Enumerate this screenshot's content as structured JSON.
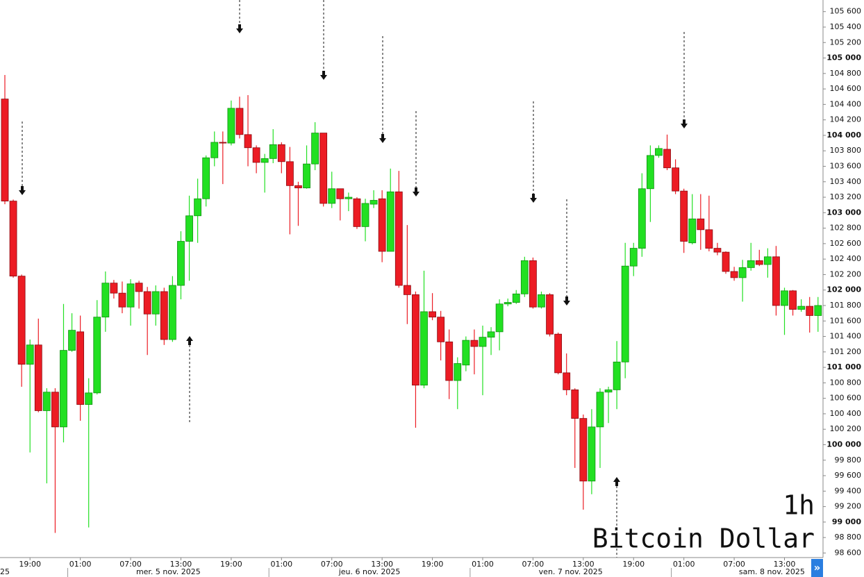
{
  "chart_data": {
    "type": "candlestick",
    "title": "Bitcoin Dollar",
    "interval": "1h",
    "up_color": "#22e022",
    "down_color": "#ec1c24",
    "categories": [
      null,
      null,
      null,
      "19:00",
      null,
      null,
      null,
      null,
      null,
      "01:00",
      null,
      null,
      null,
      null,
      null,
      "07:00",
      null,
      null,
      null,
      null,
      null,
      "13:00",
      null,
      null,
      null,
      null,
      null,
      "19:00",
      null,
      null,
      null,
      null,
      null,
      "01:00",
      null,
      null,
      null,
      null,
      null,
      "07:00",
      null,
      null,
      null,
      null,
      null,
      "13:00",
      null,
      null,
      null,
      null,
      null,
      "19:00",
      null,
      null,
      null,
      null,
      null,
      "01:00",
      null,
      null,
      null,
      null,
      null,
      "07:00",
      null,
      null,
      null,
      null,
      null,
      "13:00",
      null,
      null,
      null,
      null,
      null,
      "19:00",
      null,
      null,
      null,
      null,
      null,
      "01:00",
      null,
      null,
      null,
      null,
      null,
      "07:00",
      null,
      null,
      null,
      null,
      null,
      "13:00",
      null,
      null,
      null,
      null
    ],
    "date_labels": [
      "25",
      "mer. 5 nov. 2025",
      "jeu. 6 nov. 2025",
      "ven. 7 nov. 2025",
      "sam. 8 nov. 2025"
    ],
    "open": [
      104470,
      103150,
      102180,
      101040,
      101290,
      100440,
      100680,
      100230,
      101220,
      101460,
      100520,
      100670,
      101650,
      102090,
      101960,
      101780,
      102090,
      101980,
      101690,
      101980,
      101360,
      102060,
      102630,
      102960,
      103180,
      103710,
      103910,
      103900,
      104350,
      104010,
      103840,
      103650,
      103700,
      103880,
      103660,
      103350,
      103320,
      103630,
      104030,
      103120,
      103310,
      103180,
      103180,
      102820,
      103110,
      103180,
      102500,
      103270,
      102060,
      101940,
      100770,
      101720,
      101650,
      101330,
      100830,
      101030,
      101350,
      101270,
      101390,
      101460,
      101820,
      101840,
      101950,
      102380,
      101780,
      101940,
      101430,
      100930,
      100710,
      100340,
      99530,
      100230,
      100680,
      100710,
      101070,
      102310,
      102540,
      103310,
      103740,
      103820,
      103580,
      103280,
      102610,
      102920,
      102780,
      102540,
      102490,
      102240,
      102160,
      102290,
      102380,
      102330,
      102430,
      101800,
      101990,
      101750,
      101790,
      101670
    ],
    "high": [
      104780,
      103170,
      102200,
      101360,
      101630,
      100730,
      100730,
      101820,
      101700,
      101670,
      100860,
      101870,
      102240,
      102130,
      102110,
      102140,
      102120,
      102040,
      102060,
      102030,
      102180,
      102760,
      103220,
      103440,
      103740,
      104050,
      104050,
      104450,
      104500,
      104520,
      103870,
      103760,
      104080,
      103910,
      103850,
      103400,
      103870,
      104170,
      104030,
      103530,
      103310,
      103260,
      103200,
      103180,
      103290,
      103290,
      103570,
      103540,
      102840,
      101980,
      102250,
      101960,
      101730,
      101490,
      101130,
      101400,
      101490,
      101540,
      101520,
      101880,
      101890,
      102000,
      102430,
      102420,
      101980,
      101960,
      101450,
      101180,
      100730,
      100390,
      100460,
      100730,
      100750,
      101340,
      102610,
      102610,
      103510,
      103870,
      103870,
      104010,
      103690,
      103310,
      103240,
      103240,
      103220,
      102610,
      102500,
      102300,
      102390,
      102610,
      102520,
      102540,
      102570,
      102030,
      102000,
      101880,
      101910,
      101910
    ],
    "low": [
      103110,
      102160,
      100750,
      99900,
      100420,
      99500,
      98860,
      100030,
      101200,
      100310,
      98930,
      100650,
      101460,
      101890,
      101700,
      101540,
      101760,
      101160,
      101540,
      101290,
      101330,
      101880,
      102120,
      102610,
      103080,
      103600,
      103370,
      103870,
      103960,
      103600,
      103510,
      103260,
      103640,
      103510,
      102720,
      102830,
      103310,
      103550,
      103080,
      103060,
      102900,
      103020,
      102790,
      102630,
      103060,
      102360,
      102500,
      102030,
      101560,
      100220,
      100730,
      101610,
      101090,
      100590,
      100460,
      100950,
      100910,
      100640,
      101160,
      101220,
      101790,
      101820,
      101910,
      101760,
      101760,
      101400,
      100910,
      100640,
      99700,
      99160,
      99360,
      99700,
      100280,
      100460,
      100860,
      102180,
      102430,
      102880,
      103710,
      103550,
      103240,
      102480,
      102590,
      102520,
      102500,
      102450,
      102210,
      102120,
      101850,
      102250,
      102310,
      102160,
      101670,
      101420,
      101670,
      101720,
      101450,
      101460
    ],
    "close": [
      103150,
      102180,
      101040,
      101290,
      100440,
      100680,
      100230,
      101220,
      101480,
      100520,
      100670,
      101650,
      102090,
      101960,
      101780,
      102080,
      101980,
      101690,
      101980,
      101360,
      102060,
      102630,
      102960,
      103180,
      103710,
      103910,
      103900,
      104350,
      104010,
      103840,
      103650,
      103700,
      103880,
      103660,
      103350,
      103320,
      103630,
      104030,
      103120,
      103310,
      103180,
      103200,
      102820,
      103120,
      103160,
      102500,
      103270,
      102060,
      101940,
      100770,
      101720,
      101650,
      101330,
      100830,
      101050,
      101350,
      101270,
      101390,
      101460,
      101820,
      101840,
      101950,
      102380,
      101780,
      101940,
      101430,
      100930,
      100710,
      100340,
      99530,
      100230,
      100680,
      100710,
      101070,
      102310,
      102540,
      103310,
      103740,
      103830,
      103580,
      103280,
      102630,
      102920,
      102780,
      102540,
      102490,
      102240,
      102160,
      102290,
      102380,
      102330,
      102430,
      101800,
      101990,
      101750,
      101790,
      101670,
      101800
    ],
    "ylim": [
      98550,
      105750
    ],
    "yticks": [
      {
        "value": 98600,
        "label": "98 600"
      },
      {
        "value": 98800,
        "label": "98 800"
      },
      {
        "value": 99000,
        "label": "99 000"
      },
      {
        "value": 99200,
        "label": "99 200"
      },
      {
        "value": 99400,
        "label": "99 400"
      },
      {
        "value": 99600,
        "label": "99 600"
      },
      {
        "value": 99800,
        "label": "99 800"
      },
      {
        "value": 100000,
        "label": "100 000"
      },
      {
        "value": 100200,
        "label": "100 200"
      },
      {
        "value": 100400,
        "label": "100 400"
      },
      {
        "value": 100600,
        "label": "100 600"
      },
      {
        "value": 100800,
        "label": "100 800"
      },
      {
        "value": 101000,
        "label": "101 000"
      },
      {
        "value": 101200,
        "label": "101 200"
      },
      {
        "value": 101400,
        "label": "101 400"
      },
      {
        "value": 101600,
        "label": "101 600"
      },
      {
        "value": 101800,
        "label": "101 800"
      },
      {
        "value": 102000,
        "label": "102 000"
      },
      {
        "value": 102200,
        "label": "102 200"
      },
      {
        "value": 102400,
        "label": "102 400"
      },
      {
        "value": 102600,
        "label": "102 600"
      },
      {
        "value": 102800,
        "label": "102 800"
      },
      {
        "value": 103000,
        "label": "103 000"
      },
      {
        "value": 103200,
        "label": "103 200"
      },
      {
        "value": 103400,
        "label": "103 400"
      },
      {
        "value": 103600,
        "label": "103 600"
      },
      {
        "value": 103800,
        "label": "103 800"
      },
      {
        "value": 104000,
        "label": "104 000"
      },
      {
        "value": 104200,
        "label": "104 200"
      },
      {
        "value": 104400,
        "label": "104 400"
      },
      {
        "value": 104600,
        "label": "104 600"
      },
      {
        "value": 104800,
        "label": "104 800"
      },
      {
        "value": 105000,
        "label": "105 000"
      },
      {
        "value": 105200,
        "label": "105 200"
      },
      {
        "value": 105400,
        "label": "105 400"
      },
      {
        "value": 105600,
        "label": "105 600"
      }
    ],
    "scroll_button": "»"
  }
}
